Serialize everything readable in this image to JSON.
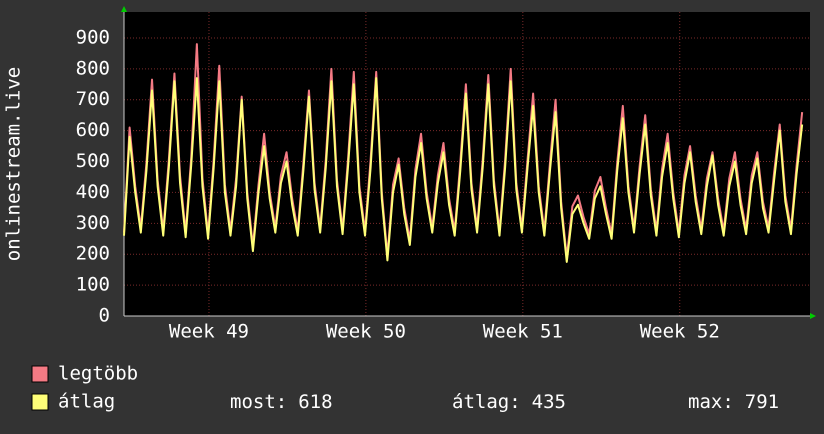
{
  "chart_data": {
    "type": "line",
    "ylabel": "onlinestream.live",
    "x": [
      0,
      0.25,
      0.5,
      0.75,
      1,
      1.25,
      1.5,
      1.75,
      2,
      2.25,
      2.5,
      2.75,
      3,
      3.25,
      3.5,
      3.75,
      4,
      4.25,
      4.5,
      4.75,
      5,
      5.25,
      5.5,
      5.75,
      6,
      6.25,
      6.5,
      6.75,
      7,
      7.25,
      7.5,
      7.75,
      8,
      8.25,
      8.5,
      8.75,
      9,
      9.25,
      9.5,
      9.75,
      10,
      10.25,
      10.5,
      10.75,
      11,
      11.25,
      11.5,
      11.75,
      12,
      12.25,
      12.5,
      12.75,
      13,
      13.25,
      13.5,
      13.75,
      14,
      14.25,
      14.5,
      14.75,
      15,
      15.25,
      15.5,
      15.75,
      16,
      16.25,
      16.5,
      16.75,
      17,
      17.25,
      17.5,
      17.75,
      18,
      18.25,
      18.5,
      18.75,
      19,
      19.25,
      19.5,
      19.75,
      20,
      20.25,
      20.5,
      20.75,
      21,
      21.25,
      21.5,
      21.75,
      22,
      22.25,
      22.5,
      22.75,
      23,
      23.25,
      23.5,
      23.75,
      24,
      24.25,
      24.5,
      24.75,
      25,
      25.25,
      25.5,
      25.75,
      26,
      26.25,
      26.5,
      26.75,
      27,
      27.25,
      27.5,
      27.75,
      28,
      28.25,
      28.5,
      28.75,
      29,
      29.25,
      29.5,
      29.75,
      30,
      30.25
    ],
    "xlim": [
      0,
      30.6
    ],
    "xticks": [
      {
        "value": 3.79,
        "label": "Week 49"
      },
      {
        "value": 10.79,
        "label": "Week 50"
      },
      {
        "value": 17.79,
        "label": "Week 51"
      },
      {
        "value": 24.79,
        "label": "Week 52"
      }
    ],
    "ylim": [
      0,
      984
    ],
    "yticks": [
      0,
      100,
      200,
      300,
      400,
      500,
      600,
      700,
      800,
      900
    ],
    "grid": true,
    "series": [
      {
        "name": "legtöbb",
        "color": "#f47a84",
        "values": [
          270,
          610,
          420,
          285,
          495,
          765,
          440,
          275,
          505,
          785,
          455,
          270,
          515,
          880,
          445,
          265,
          505,
          810,
          425,
          275,
          445,
          710,
          400,
          225,
          425,
          590,
          400,
          285,
          455,
          530,
          380,
          275,
          495,
          730,
          430,
          285,
          505,
          800,
          440,
          280,
          515,
          790,
          420,
          275,
          505,
          790,
          400,
          195,
          425,
          510,
          350,
          245,
          475,
          590,
          400,
          285,
          455,
          560,
          380,
          275,
          495,
          750,
          430,
          285,
          505,
          780,
          440,
          275,
          505,
          800,
          430,
          285,
          505,
          720,
          420,
          275,
          495,
          700,
          370,
          190,
          355,
          390,
          320,
          265,
          405,
          450,
          350,
          265,
          495,
          680,
          420,
          285,
          485,
          650,
          410,
          275,
          475,
          590,
          400,
          270,
          455,
          550,
          390,
          280,
          445,
          530,
          380,
          275,
          445,
          530,
          380,
          280,
          455,
          530,
          370,
          285,
          465,
          620,
          390,
          280,
          485,
          660
        ]
      },
      {
        "name": "átlag",
        "color": "#ffff78",
        "values": [
          260,
          580,
          400,
          270,
          470,
          730,
          420,
          260,
          480,
          760,
          430,
          255,
          490,
          770,
          420,
          250,
          480,
          760,
          400,
          260,
          420,
          700,
          380,
          210,
          400,
          550,
          380,
          270,
          430,
          500,
          360,
          260,
          470,
          710,
          410,
          270,
          480,
          760,
          420,
          265,
          490,
          750,
          400,
          260,
          480,
          770,
          380,
          180,
          400,
          490,
          330,
          230,
          450,
          560,
          380,
          270,
          430,
          530,
          360,
          260,
          470,
          720,
          410,
          270,
          480,
          750,
          420,
          260,
          480,
          760,
          410,
          270,
          480,
          680,
          400,
          260,
          470,
          660,
          350,
          175,
          330,
          360,
          300,
          250,
          380,
          420,
          330,
          250,
          470,
          640,
          400,
          270,
          460,
          620,
          390,
          260,
          450,
          560,
          380,
          255,
          430,
          530,
          370,
          265,
          420,
          520,
          360,
          260,
          420,
          500,
          360,
          265,
          430,
          510,
          350,
          270,
          440,
          600,
          370,
          265,
          460,
          620
        ]
      }
    ],
    "stats": [
      {
        "label": "most:",
        "value": 618
      },
      {
        "label": "átlag:",
        "value": 435
      },
      {
        "label": "max:",
        "value": 791
      }
    ]
  }
}
